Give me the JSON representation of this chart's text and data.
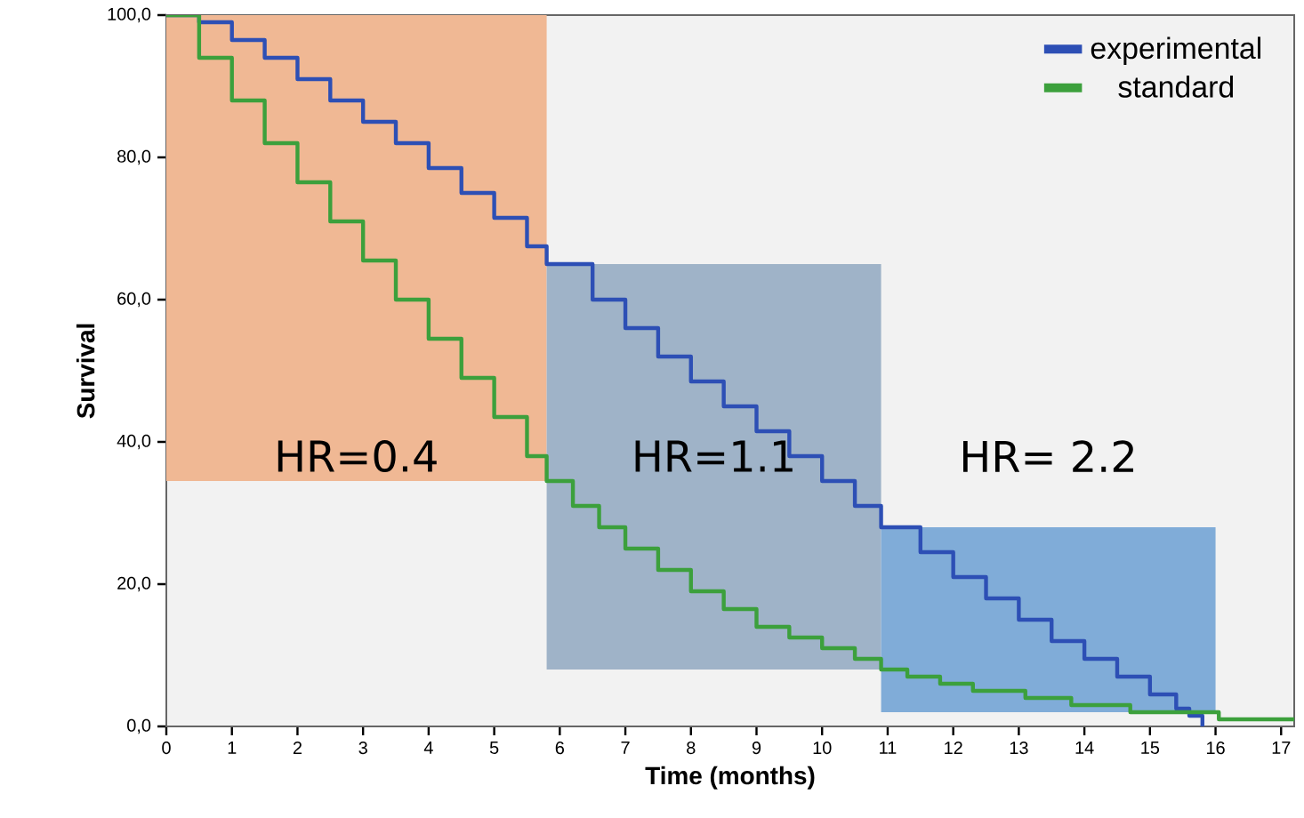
{
  "chart_data": {
    "type": "step",
    "xlabel": "Time (months)",
    "ylabel": "Survival",
    "xlim": [
      0,
      17.2
    ],
    "ylim": [
      0,
      100
    ],
    "xticks": [
      0,
      1,
      2,
      3,
      4,
      5,
      6,
      7,
      8,
      9,
      10,
      11,
      12,
      13,
      14,
      15,
      16,
      17
    ],
    "yticks": [
      {
        "value": 0,
        "label": "0,0"
      },
      {
        "value": 20,
        "label": "20,0"
      },
      {
        "value": 40,
        "label": "40,0"
      },
      {
        "value": 60,
        "label": "60,0"
      },
      {
        "value": 80,
        "label": "80,0"
      },
      {
        "value": 100,
        "label": "100,0"
      }
    ],
    "legend": "top right",
    "grid": false,
    "series": [
      {
        "name": "experimental",
        "color": "#2d4fb5",
        "x": [
          0,
          0.5,
          1,
          1.5,
          2,
          2.5,
          3,
          3.5,
          4,
          4.5,
          5,
          5.5,
          5.8,
          6.5,
          7,
          7.5,
          8,
          8.5,
          9,
          9.5,
          10,
          10.5,
          10.9,
          11.5,
          12,
          12.5,
          13,
          13.5,
          14,
          14.5,
          15,
          15.4,
          15.6,
          15.8
        ],
        "values": [
          100,
          99,
          96.5,
          94,
          91,
          88,
          85,
          82,
          78.5,
          75,
          71.5,
          67.5,
          65,
          60,
          56,
          52,
          48.5,
          45,
          41.5,
          38,
          34.5,
          31,
          28,
          24.5,
          21,
          18,
          15,
          12,
          9.5,
          7,
          4.5,
          2.5,
          1.5,
          0
        ]
      },
      {
        "name": "standard",
        "color": "#3ca03c",
        "x": [
          0,
          0.5,
          1,
          1.5,
          2,
          2.5,
          3,
          3.5,
          4,
          4.5,
          5,
          5.5,
          5.8,
          6.2,
          6.6,
          7,
          7.5,
          8,
          8.5,
          9,
          9.5,
          10,
          10.5,
          10.9,
          11.3,
          11.8,
          12.3,
          13.1,
          13.8,
          14.7,
          16.05,
          17.2
        ],
        "values": [
          100,
          94,
          88,
          82,
          76.5,
          71,
          65.5,
          60,
          54.5,
          49,
          43.5,
          38,
          34.5,
          31,
          28,
          25,
          22,
          19,
          16.5,
          14,
          12.5,
          11,
          9.5,
          8,
          7,
          6,
          5,
          4,
          3,
          2,
          1,
          1
        ]
      }
    ],
    "bands": [
      {
        "axis": "x",
        "from": 0,
        "to": 5.8,
        "label": "HR=0.4",
        "color": "#f0b894"
      },
      {
        "axis": "x",
        "from": 5.8,
        "to": 10.9,
        "label": "HR=1.1",
        "color": "#9fb3c8"
      },
      {
        "axis": "x",
        "from": 10.9,
        "to": 16,
        "label": "HR= 2.2",
        "color": "#80acd8"
      }
    ]
  }
}
